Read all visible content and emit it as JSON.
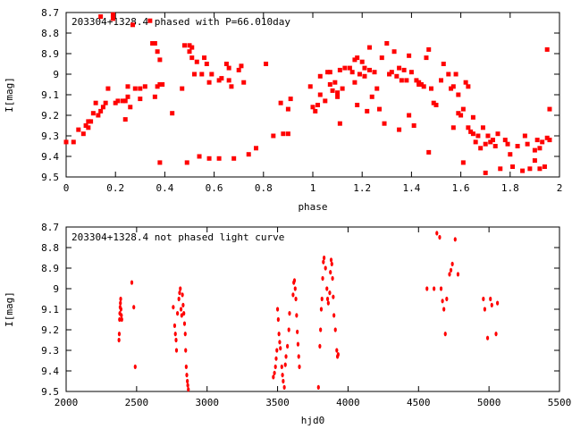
{
  "chart_data": [
    {
      "type": "scatter",
      "title": "203304+1328.4 phased with P=66.010day",
      "xlabel": "phase",
      "ylabel": "I[mag]",
      "xlim": [
        0,
        2
      ],
      "ylim": [
        8.7,
        9.5
      ],
      "y_inverted": true,
      "grid": false,
      "marker_color": "#ff0000",
      "x_ticks": [
        "0",
        "0.2",
        "0.4",
        "0.6",
        "0.8",
        "1",
        "1.2",
        "1.4",
        "1.6",
        "1.8",
        "2"
      ],
      "y_ticks": [
        "8.7",
        "8.8",
        "8.9",
        "9",
        "9.1",
        "9.2",
        "9.3",
        "9.4",
        "9.5"
      ],
      "points": [
        [
          0.0,
          9.33
        ],
        [
          0.03,
          9.33
        ],
        [
          0.05,
          9.27
        ],
        [
          0.07,
          9.29
        ],
        [
          0.08,
          9.25
        ],
        [
          0.09,
          9.26
        ],
        [
          0.09,
          9.23
        ],
        [
          0.1,
          9.23
        ],
        [
          0.11,
          9.19
        ],
        [
          0.12,
          9.14
        ],
        [
          0.13,
          9.2
        ],
        [
          0.14,
          9.18
        ],
        [
          0.15,
          9.16
        ],
        [
          0.16,
          9.14
        ],
        [
          0.17,
          9.07
        ],
        [
          0.14,
          8.72
        ],
        [
          0.19,
          8.73
        ],
        [
          0.19,
          8.71
        ],
        [
          0.2,
          9.14
        ],
        [
          0.21,
          9.13
        ],
        [
          0.23,
          9.13
        ],
        [
          0.24,
          9.13
        ],
        [
          0.25,
          9.11
        ],
        [
          0.24,
          9.22
        ],
        [
          0.25,
          9.06
        ],
        [
          0.26,
          9.16
        ],
        [
          0.27,
          8.76
        ],
        [
          0.28,
          9.07
        ],
        [
          0.3,
          9.07
        ],
        [
          0.3,
          9.12
        ],
        [
          0.32,
          9.06
        ],
        [
          0.34,
          8.74
        ],
        [
          0.35,
          8.85
        ],
        [
          0.36,
          8.85
        ],
        [
          0.36,
          9.11
        ],
        [
          0.37,
          8.89
        ],
        [
          0.37,
          9.06
        ],
        [
          0.38,
          9.05
        ],
        [
          0.39,
          9.05
        ],
        [
          0.38,
          8.93
        ],
        [
          0.38,
          9.43
        ],
        [
          0.43,
          9.19
        ],
        [
          0.47,
          9.07
        ],
        [
          0.48,
          8.86
        ],
        [
          0.49,
          9.43
        ],
        [
          0.5,
          8.86
        ],
        [
          0.51,
          8.87
        ],
        [
          0.5,
          8.89
        ],
        [
          0.51,
          8.92
        ],
        [
          0.52,
          9.0
        ],
        [
          0.53,
          8.94
        ],
        [
          0.54,
          9.4
        ],
        [
          0.55,
          9.0
        ],
        [
          0.56,
          8.92
        ],
        [
          0.57,
          8.95
        ],
        [
          0.58,
          9.41
        ],
        [
          0.58,
          9.04
        ],
        [
          0.59,
          9.0
        ],
        [
          0.62,
          9.41
        ],
        [
          0.62,
          9.03
        ],
        [
          0.63,
          9.02
        ],
        [
          0.65,
          8.95
        ],
        [
          0.66,
          8.97
        ],
        [
          0.66,
          9.03
        ],
        [
          0.67,
          9.06
        ],
        [
          0.68,
          9.41
        ],
        [
          0.7,
          8.98
        ],
        [
          0.71,
          8.96
        ],
        [
          0.72,
          9.04
        ],
        [
          0.74,
          9.39
        ],
        [
          0.77,
          9.36
        ],
        [
          0.81,
          8.95
        ],
        [
          0.84,
          9.3
        ],
        [
          0.87,
          9.14
        ],
        [
          0.88,
          9.29
        ],
        [
          0.9,
          9.29
        ],
        [
          0.9,
          9.17
        ],
        [
          0.91,
          9.12
        ],
        [
          0.99,
          9.06
        ],
        [
          1.0,
          9.16
        ],
        [
          1.01,
          9.18
        ],
        [
          1.02,
          9.15
        ],
        [
          1.03,
          9.1
        ],
        [
          1.03,
          9.01
        ],
        [
          1.05,
          9.13
        ],
        [
          1.06,
          8.99
        ],
        [
          1.07,
          8.99
        ],
        [
          1.07,
          9.05
        ],
        [
          1.08,
          9.08
        ],
        [
          1.09,
          9.04
        ],
        [
          1.1,
          9.11
        ],
        [
          1.1,
          9.09
        ],
        [
          1.11,
          8.98
        ],
        [
          1.11,
          9.24
        ],
        [
          1.12,
          9.07
        ],
        [
          1.13,
          8.97
        ],
        [
          1.15,
          8.97
        ],
        [
          1.16,
          8.99
        ],
        [
          1.17,
          8.93
        ],
        [
          1.17,
          9.04
        ],
        [
          1.18,
          9.15
        ],
        [
          1.18,
          8.92
        ],
        [
          1.19,
          9.0
        ],
        [
          1.2,
          8.94
        ],
        [
          1.21,
          8.97
        ],
        [
          1.21,
          9.01
        ],
        [
          1.22,
          9.18
        ],
        [
          1.23,
          8.98
        ],
        [
          1.23,
          8.87
        ],
        [
          1.24,
          9.11
        ],
        [
          1.25,
          8.99
        ],
        [
          1.26,
          9.07
        ],
        [
          1.27,
          9.17
        ],
        [
          1.28,
          8.92
        ],
        [
          1.29,
          9.24
        ],
        [
          1.3,
          8.85
        ],
        [
          1.31,
          9.0
        ],
        [
          1.32,
          8.99
        ],
        [
          1.33,
          8.89
        ],
        [
          1.34,
          9.01
        ],
        [
          1.35,
          8.97
        ],
        [
          1.35,
          9.27
        ],
        [
          1.36,
          9.03
        ],
        [
          1.37,
          8.98
        ],
        [
          1.38,
          9.03
        ],
        [
          1.39,
          8.91
        ],
        [
          1.39,
          9.2
        ],
        [
          1.4,
          8.99
        ],
        [
          1.41,
          9.25
        ],
        [
          1.42,
          9.03
        ],
        [
          1.43,
          9.05
        ],
        [
          1.43,
          9.04
        ],
        [
          1.44,
          9.05
        ],
        [
          1.45,
          9.06
        ],
        [
          1.46,
          8.92
        ],
        [
          1.47,
          8.88
        ],
        [
          1.47,
          9.38
        ],
        [
          1.48,
          9.07
        ],
        [
          1.49,
          9.14
        ],
        [
          1.5,
          9.15
        ],
        [
          1.52,
          9.03
        ],
        [
          1.53,
          8.95
        ],
        [
          1.55,
          9.0
        ],
        [
          1.56,
          9.07
        ],
        [
          1.57,
          9.06
        ],
        [
          1.57,
          9.26
        ],
        [
          1.58,
          9.0
        ],
        [
          1.59,
          9.1
        ],
        [
          1.59,
          9.19
        ],
        [
          1.6,
          9.2
        ],
        [
          1.61,
          9.17
        ],
        [
          1.61,
          9.43
        ],
        [
          1.62,
          9.04
        ],
        [
          1.63,
          9.26
        ],
        [
          1.63,
          9.06
        ],
        [
          1.64,
          9.28
        ],
        [
          1.65,
          9.21
        ],
        [
          1.65,
          9.29
        ],
        [
          1.66,
          9.33
        ],
        [
          1.67,
          9.3
        ],
        [
          1.68,
          9.36
        ],
        [
          1.69,
          9.26
        ],
        [
          1.7,
          9.34
        ],
        [
          1.7,
          9.48
        ],
        [
          1.71,
          9.3
        ],
        [
          1.72,
          9.33
        ],
        [
          1.73,
          9.32
        ],
        [
          1.74,
          9.35
        ],
        [
          1.75,
          9.29
        ],
        [
          1.76,
          9.46
        ],
        [
          1.78,
          9.32
        ],
        [
          1.79,
          9.34
        ],
        [
          1.8,
          9.39
        ],
        [
          1.81,
          9.45
        ],
        [
          1.83,
          9.35
        ],
        [
          1.85,
          9.47
        ],
        [
          1.86,
          9.3
        ],
        [
          1.87,
          9.34
        ],
        [
          1.88,
          9.46
        ],
        [
          1.9,
          9.42
        ],
        [
          1.91,
          9.32
        ],
        [
          1.92,
          9.46
        ],
        [
          1.93,
          9.33
        ],
        [
          1.94,
          9.45
        ],
        [
          1.95,
          9.31
        ],
        [
          1.96,
          9.32
        ],
        [
          1.95,
          8.88
        ],
        [
          1.96,
          9.17
        ],
        [
          1.92,
          9.36
        ],
        [
          1.9,
          9.37
        ]
      ]
    },
    {
      "type": "scatter",
      "title": "203304+1328.4 not phased light curve",
      "xlabel": "hjd0",
      "ylabel": "I[mag]",
      "xlim": [
        2000,
        5500
      ],
      "ylim": [
        8.7,
        9.5
      ],
      "y_inverted": true,
      "grid": false,
      "marker_color": "#ff0000",
      "x_ticks": [
        "2000",
        "2500",
        "3000",
        "3500",
        "4000",
        "4500",
        "5000",
        "5500"
      ],
      "y_ticks": [
        "8.7",
        "8.8",
        "8.9",
        "9",
        "9.1",
        "9.2",
        "9.3",
        "9.4",
        "9.5"
      ],
      "points": [
        [
          2375,
          9.25
        ],
        [
          2377,
          9.22
        ],
        [
          2379,
          9.15
        ],
        [
          2381,
          9.12
        ],
        [
          2383,
          9.09
        ],
        [
          2385,
          9.07
        ],
        [
          2387,
          9.05
        ],
        [
          2389,
          9.1
        ],
        [
          2392,
          9.13
        ],
        [
          2395,
          9.15
        ],
        [
          2466,
          8.97
        ],
        [
          2480,
          9.09
        ],
        [
          2490,
          9.38
        ],
        [
          2760,
          9.09
        ],
        [
          2770,
          9.18
        ],
        [
          2775,
          9.22
        ],
        [
          2780,
          9.25
        ],
        [
          2783,
          9.3
        ],
        [
          2790,
          9.12
        ],
        [
          2800,
          9.05
        ],
        [
          2805,
          9.02
        ],
        [
          2810,
          9.0
        ],
        [
          2815,
          9.1
        ],
        [
          2820,
          9.13
        ],
        [
          2825,
          9.03
        ],
        [
          2830,
          9.08
        ],
        [
          2835,
          9.12
        ],
        [
          2840,
          9.17
        ],
        [
          2845,
          9.22
        ],
        [
          2848,
          9.3
        ],
        [
          2852,
          9.38
        ],
        [
          2856,
          9.42
        ],
        [
          2860,
          9.45
        ],
        [
          2863,
          9.47
        ],
        [
          2867,
          9.49
        ],
        [
          3470,
          9.43
        ],
        [
          3478,
          9.41
        ],
        [
          3485,
          9.38
        ],
        [
          3490,
          9.34
        ],
        [
          3495,
          9.3
        ],
        [
          3500,
          9.1
        ],
        [
          3505,
          9.15
        ],
        [
          3510,
          9.22
        ],
        [
          3515,
          9.26
        ],
        [
          3520,
          9.29
        ],
        [
          3530,
          9.38
        ],
        [
          3535,
          9.42
        ],
        [
          3540,
          9.45
        ],
        [
          3548,
          9.48
        ],
        [
          3555,
          9.37
        ],
        [
          3560,
          9.33
        ],
        [
          3570,
          9.28
        ],
        [
          3580,
          9.2
        ],
        [
          3585,
          9.12
        ],
        [
          3610,
          9.03
        ],
        [
          3615,
          8.97
        ],
        [
          3620,
          8.96
        ],
        [
          3625,
          9.0
        ],
        [
          3630,
          9.05
        ],
        [
          3635,
          9.13
        ],
        [
          3640,
          9.21
        ],
        [
          3645,
          9.27
        ],
        [
          3650,
          9.33
        ],
        [
          3655,
          9.38
        ],
        [
          3790,
          9.48
        ],
        [
          3800,
          9.28
        ],
        [
          3805,
          9.2
        ],
        [
          3810,
          9.1
        ],
        [
          3815,
          9.05
        ],
        [
          3820,
          8.95
        ],
        [
          3825,
          8.87
        ],
        [
          3830,
          8.85
        ],
        [
          3840,
          8.9
        ],
        [
          3850,
          9.0
        ],
        [
          3855,
          9.05
        ],
        [
          3860,
          9.07
        ],
        [
          3870,
          9.02
        ],
        [
          3875,
          8.92
        ],
        [
          3880,
          8.86
        ],
        [
          3885,
          8.88
        ],
        [
          3890,
          8.95
        ],
        [
          3895,
          9.04
        ],
        [
          3900,
          9.13
        ],
        [
          3910,
          9.2
        ],
        [
          3920,
          9.3
        ],
        [
          3925,
          9.33
        ],
        [
          3930,
          9.32
        ],
        [
          4560,
          9.0
        ],
        [
          4610,
          9.0
        ],
        [
          4630,
          8.73
        ],
        [
          4650,
          8.75
        ],
        [
          4660,
          9.0
        ],
        [
          4670,
          9.06
        ],
        [
          4680,
          9.1
        ],
        [
          4690,
          9.22
        ],
        [
          4700,
          9.05
        ],
        [
          4720,
          8.93
        ],
        [
          4730,
          8.91
        ],
        [
          4740,
          8.88
        ],
        [
          4760,
          8.76
        ],
        [
          4780,
          8.93
        ],
        [
          4960,
          9.05
        ],
        [
          4970,
          9.1
        ],
        [
          4990,
          9.24
        ],
        [
          5010,
          9.05
        ],
        [
          5020,
          9.08
        ],
        [
          5050,
          9.22
        ],
        [
          5060,
          9.07
        ]
      ]
    }
  ]
}
